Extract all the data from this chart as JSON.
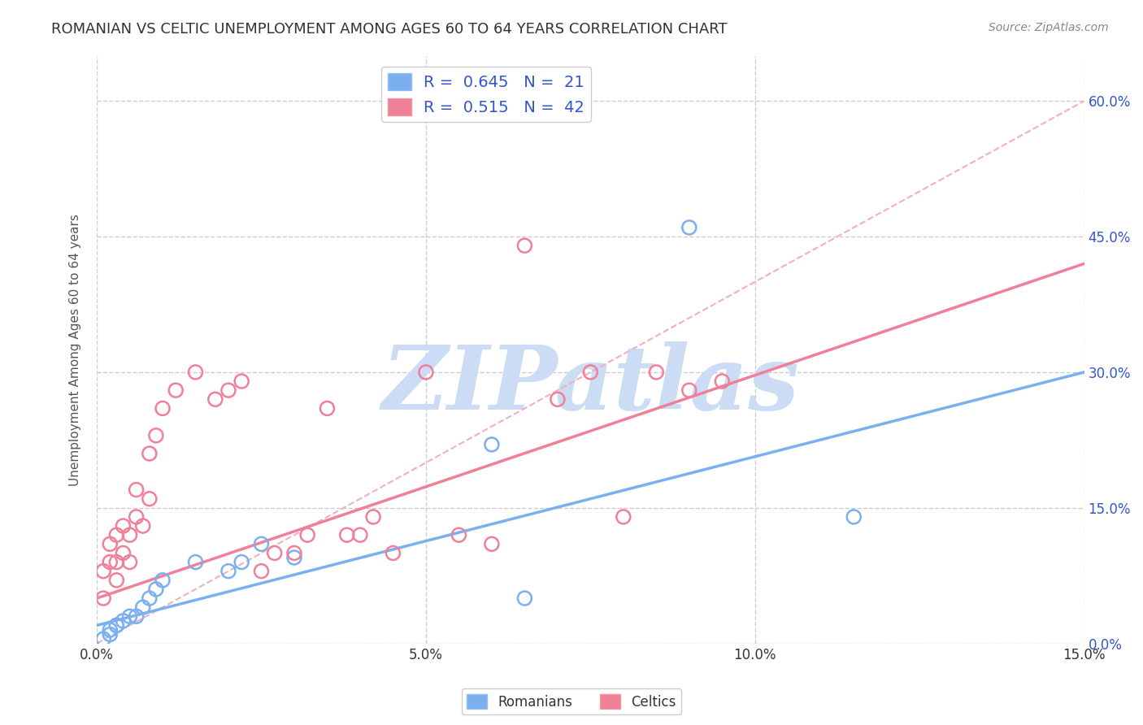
{
  "title": "ROMANIAN VS CELTIC UNEMPLOYMENT AMONG AGES 60 TO 64 YEARS CORRELATION CHART",
  "source": "Source: ZipAtlas.com",
  "ylabel": "Unemployment Among Ages 60 to 64 years",
  "xlim": [
    0.0,
    0.15
  ],
  "ylim": [
    0.0,
    0.65
  ],
  "xticks": [
    0.0,
    0.05,
    0.1,
    0.15
  ],
  "xtick_labels": [
    "0.0%",
    "5.0%",
    "10.0%",
    "15.0%"
  ],
  "yticks": [
    0.0,
    0.15,
    0.3,
    0.45,
    0.6
  ],
  "ytick_labels_right": [
    "0.0%",
    "15.0%",
    "30.0%",
    "45.0%",
    "60.0%"
  ],
  "background_color": "#ffffff",
  "grid_color": "#cccccc",
  "watermark_text": "ZIPatlas",
  "watermark_color": "#ccdcf5",
  "romanians_color": "#7ab0f0",
  "celtics_color": "#f08098",
  "romanians_R": 0.645,
  "romanians_N": 21,
  "celtics_R": 0.515,
  "celtics_N": 42,
  "legend_text_color": "#3355cc",
  "ref_line_color": "#f0b0c0",
  "romanians_x": [
    0.001,
    0.002,
    0.002,
    0.003,
    0.003,
    0.004,
    0.005,
    0.006,
    0.007,
    0.008,
    0.009,
    0.01,
    0.015,
    0.02,
    0.022,
    0.025,
    0.03,
    0.06,
    0.065,
    0.09,
    0.115
  ],
  "romanians_y": [
    0.005,
    0.01,
    0.015,
    0.02,
    0.02,
    0.025,
    0.03,
    0.03,
    0.04,
    0.05,
    0.06,
    0.07,
    0.09,
    0.08,
    0.09,
    0.11,
    0.095,
    0.22,
    0.05,
    0.46,
    0.14
  ],
  "celtics_x": [
    0.001,
    0.001,
    0.002,
    0.002,
    0.003,
    0.003,
    0.003,
    0.004,
    0.004,
    0.005,
    0.005,
    0.006,
    0.006,
    0.007,
    0.008,
    0.008,
    0.009,
    0.01,
    0.012,
    0.015,
    0.018,
    0.02,
    0.022,
    0.025,
    0.027,
    0.03,
    0.032,
    0.035,
    0.038,
    0.04,
    0.042,
    0.045,
    0.05,
    0.055,
    0.06,
    0.065,
    0.07,
    0.075,
    0.08,
    0.085,
    0.09,
    0.095
  ],
  "celtics_y": [
    0.05,
    0.08,
    0.09,
    0.11,
    0.07,
    0.09,
    0.12,
    0.1,
    0.13,
    0.09,
    0.12,
    0.14,
    0.17,
    0.13,
    0.16,
    0.21,
    0.23,
    0.26,
    0.28,
    0.3,
    0.27,
    0.28,
    0.29,
    0.08,
    0.1,
    0.1,
    0.12,
    0.26,
    0.12,
    0.12,
    0.14,
    0.1,
    0.3,
    0.12,
    0.11,
    0.44,
    0.27,
    0.3,
    0.14,
    0.3,
    0.28,
    0.29
  ]
}
